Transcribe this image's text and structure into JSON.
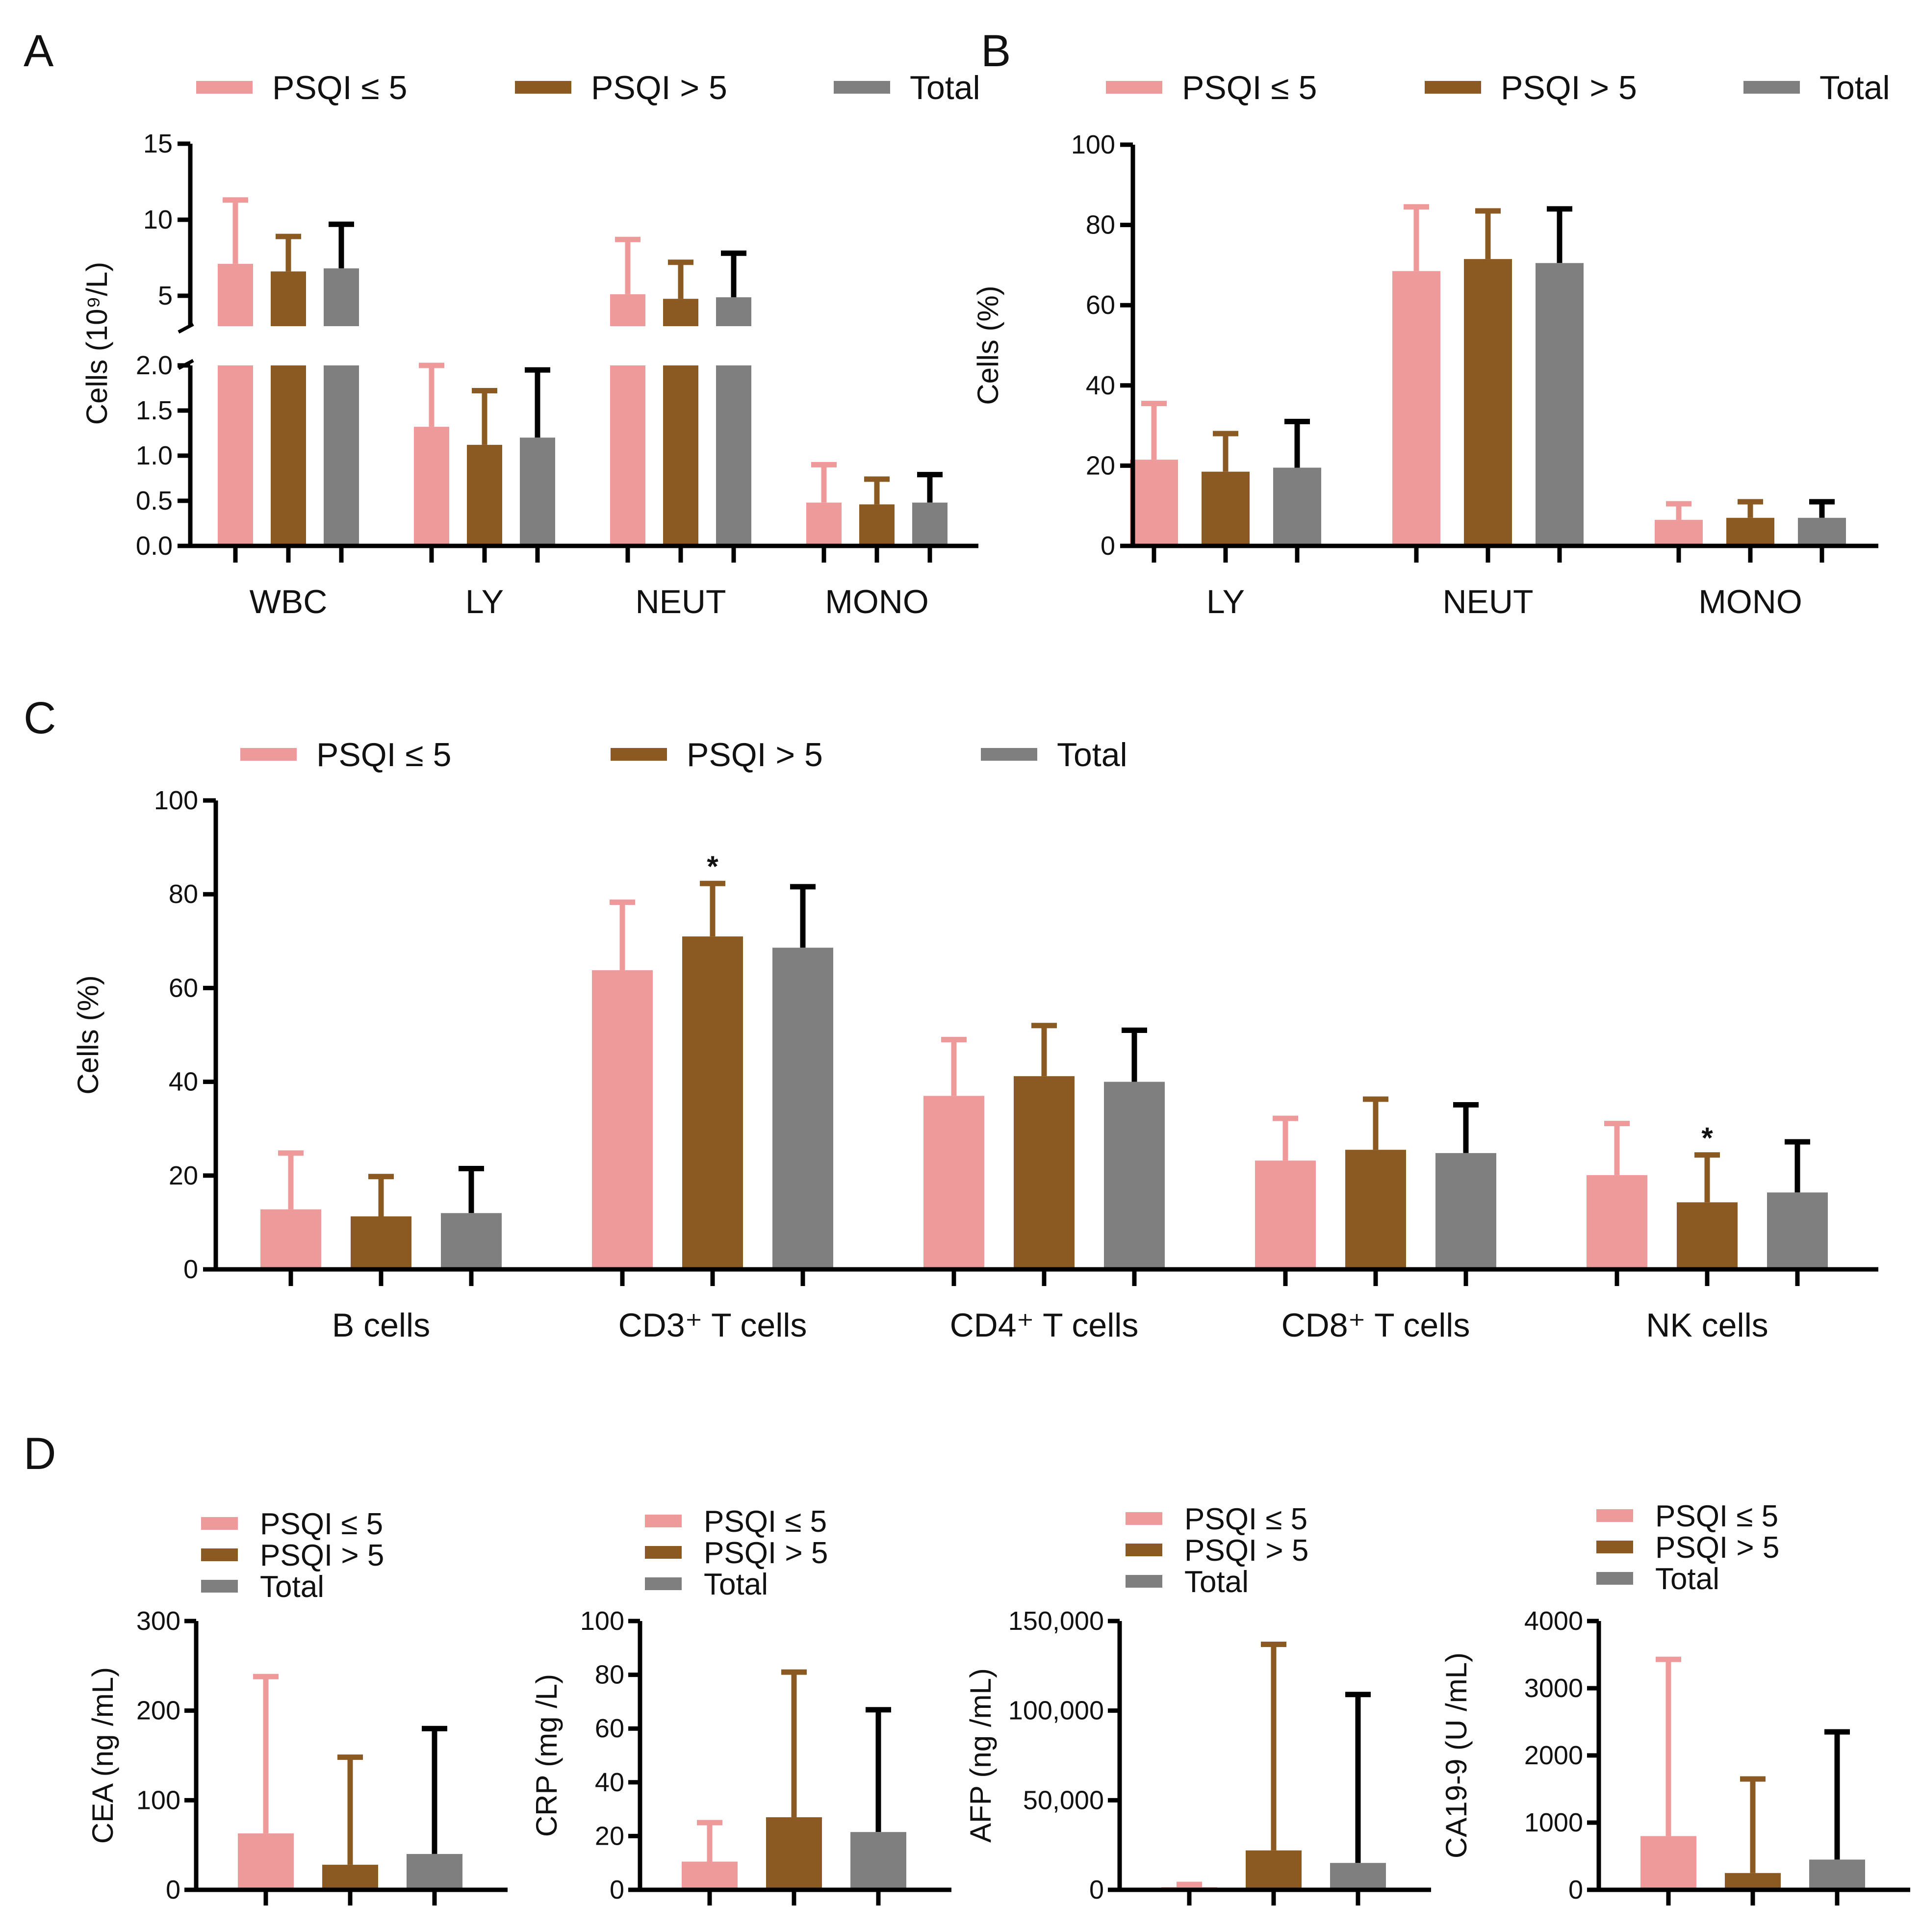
{
  "colors": {
    "psqi_le5": "#EF9A9A",
    "psqi_gt5": "#8B5A22",
    "total": "#7F7F7F",
    "axis": "#000000"
  },
  "series_names": [
    "PSQI ≤ 5",
    "PSQI > 5",
    "Total"
  ],
  "chart_data": [
    {
      "id": "A",
      "type": "bar",
      "title": "",
      "xlabel": "",
      "ylabel": "Cells (10⁹/L)",
      "y_break": {
        "lower": [
          0,
          2.0
        ],
        "upper": [
          3,
          15
        ]
      },
      "yticks_lower": [
        "0.0",
        "0.5",
        "1.0",
        "1.5",
        "2.0"
      ],
      "yticks_upper": [
        "5",
        "10",
        "15"
      ],
      "categories": [
        "WBC",
        "LY",
        "NEUT",
        "MONO"
      ],
      "series": [
        {
          "name": "PSQI ≤ 5",
          "values": [
            7.1,
            1.32,
            5.1,
            0.48
          ],
          "errors": [
            4.2,
            0.72,
            3.6,
            0.42
          ]
        },
        {
          "name": "PSQI > 5",
          "values": [
            6.6,
            1.12,
            4.8,
            0.46
          ],
          "errors": [
            2.3,
            0.6,
            2.4,
            0.28
          ]
        },
        {
          "name": "Total",
          "values": [
            6.8,
            1.2,
            4.9,
            0.48
          ],
          "errors": [
            2.9,
            0.75,
            2.9,
            0.31
          ]
        }
      ],
      "legend": "top"
    },
    {
      "id": "B",
      "type": "bar",
      "title": "",
      "xlabel": "",
      "ylabel": "Cells (%)",
      "ylim": [
        0,
        100
      ],
      "yticks": [
        "0",
        "20",
        "40",
        "60",
        "80",
        "100"
      ],
      "categories": [
        "LY",
        "NEUT",
        "MONO"
      ],
      "series": [
        {
          "name": "PSQI ≤ 5",
          "values": [
            21.5,
            68.5,
            6.5
          ],
          "errors": [
            14,
            16,
            4
          ]
        },
        {
          "name": "PSQI > 5",
          "values": [
            18.5,
            71.5,
            7
          ],
          "errors": [
            9.5,
            12,
            4
          ]
        },
        {
          "name": "Total",
          "values": [
            19.5,
            70.5,
            7
          ],
          "errors": [
            11.5,
            13.5,
            4
          ]
        }
      ],
      "legend": "top"
    },
    {
      "id": "C",
      "type": "bar",
      "title": "",
      "xlabel": "",
      "ylabel": "Cells (%)",
      "ylim": [
        0,
        100
      ],
      "yticks": [
        "0",
        "20",
        "40",
        "60",
        "80",
        "100"
      ],
      "categories": [
        "B cells",
        "CD3⁺ T cells",
        "CD4⁺ T cells",
        "CD8⁺ T cells",
        "NK cells"
      ],
      "series": [
        {
          "name": "PSQI ≤ 5",
          "values": [
            12.8,
            63.8,
            37,
            23.2,
            20.1
          ],
          "errors": [
            12,
            14.5,
            12,
            9,
            11
          ]
        },
        {
          "name": "PSQI > 5",
          "values": [
            11.3,
            71,
            41.2,
            25.5,
            14.3
          ],
          "errors": [
            8.5,
            11.3,
            10.8,
            10.8,
            10.1
          ]
        },
        {
          "name": "Total",
          "values": [
            12,
            68.6,
            40,
            24.8,
            16.4
          ],
          "errors": [
            9.5,
            13,
            11,
            10.3,
            10.8
          ]
        }
      ],
      "significance": [
        {
          "category": "CD3⁺ T cells",
          "series": "PSQI > 5",
          "label": "*"
        },
        {
          "category": "NK cells",
          "series": "PSQI > 5",
          "label": "*"
        }
      ],
      "legend": "top"
    },
    {
      "id": "D1",
      "type": "bar",
      "ylabel": "CEA (ng /mL)",
      "ylim": [
        0,
        300
      ],
      "yticks": [
        "0",
        "100",
        "200",
        "300"
      ],
      "categories": [
        "PSQI ≤ 5",
        "PSQI > 5",
        "Total"
      ],
      "values": [
        63,
        28,
        40
      ],
      "errors": [
        175,
        120,
        140
      ],
      "legend": "top-left"
    },
    {
      "id": "D2",
      "type": "bar",
      "ylabel": "CRP (mg /L)",
      "ylim": [
        0,
        100
      ],
      "yticks": [
        "0",
        "20",
        "40",
        "60",
        "80",
        "100"
      ],
      "categories": [
        "PSQI ≤ 5",
        "PSQI > 5",
        "Total"
      ],
      "values": [
        10.5,
        27,
        21.5
      ],
      "errors": [
        14.5,
        54,
        45.5
      ],
      "legend": "top-left"
    },
    {
      "id": "D3",
      "type": "bar",
      "ylabel": "AFP (ng /mL)",
      "ylim": [
        0,
        150000
      ],
      "yticks": [
        "0",
        "50,000",
        "100,000",
        "150,000"
      ],
      "categories": [
        "PSQI ≤ 5",
        "PSQI > 5",
        "Total"
      ],
      "values": [
        1500,
        22000,
        15000
      ],
      "errors": [
        1500,
        115000,
        94000
      ],
      "legend": "top-left"
    },
    {
      "id": "D4",
      "type": "bar",
      "ylabel": "CA19-9 (U /mL)",
      "ylim": [
        0,
        4000
      ],
      "yticks": [
        "0",
        "1000",
        "2000",
        "3000",
        "4000"
      ],
      "categories": [
        "PSQI ≤ 5",
        "PSQI > 5",
        "Total"
      ],
      "values": [
        800,
        250,
        450
      ],
      "errors": [
        2630,
        1400,
        1900
      ],
      "legend": "top-left"
    }
  ]
}
